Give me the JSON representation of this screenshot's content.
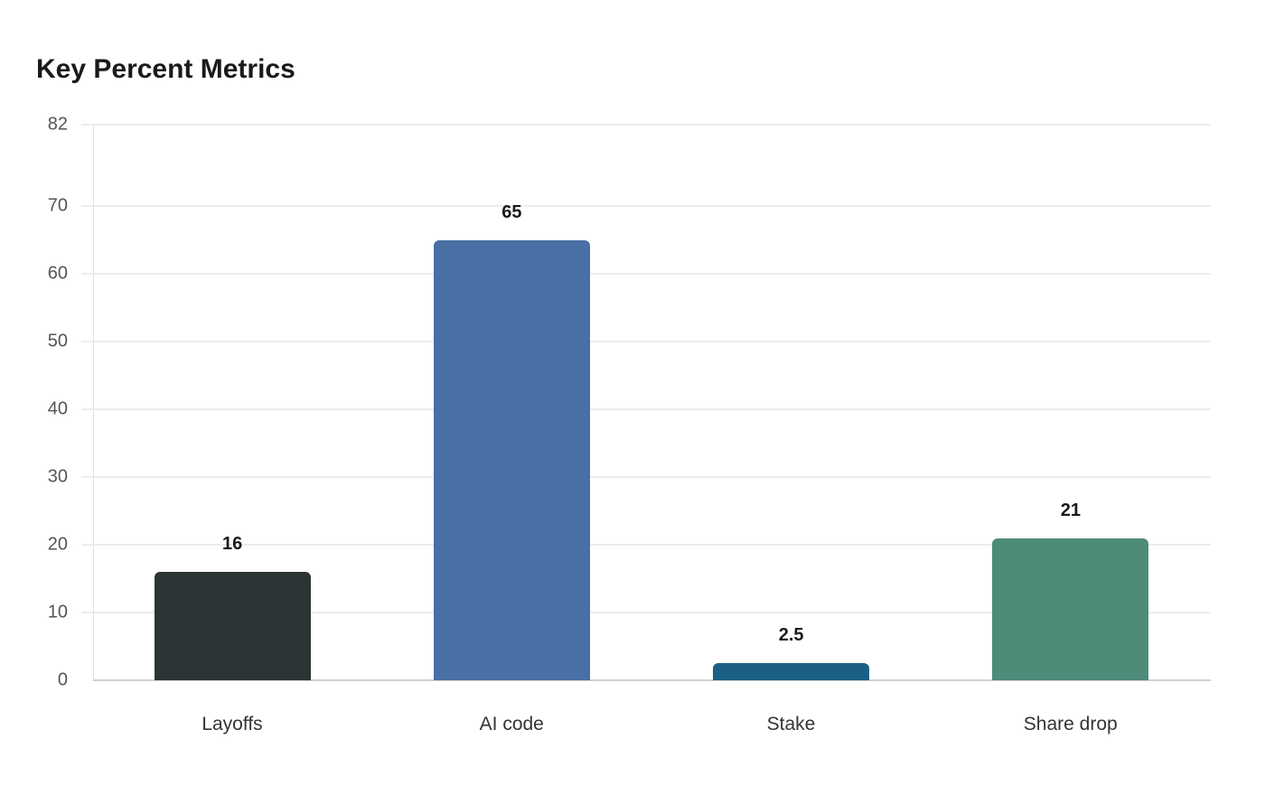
{
  "chart_data": {
    "type": "bar",
    "title": "Key Percent Metrics",
    "xlabel": "",
    "ylabel": "",
    "ylim": [
      0,
      82
    ],
    "yticks": [
      0,
      10,
      20,
      30,
      40,
      50,
      60,
      70,
      82
    ],
    "grid": true,
    "legend": null,
    "categories": [
      "Layoffs",
      "AI code",
      "Stake",
      "Share drop"
    ],
    "values": [
      16,
      65,
      2.5,
      21
    ],
    "value_labels": [
      "16",
      "65",
      "2.5",
      "21"
    ],
    "colors": [
      "#2d3436",
      "#4a6fa5",
      "#1b5f85",
      "#4e8c7a"
    ]
  }
}
